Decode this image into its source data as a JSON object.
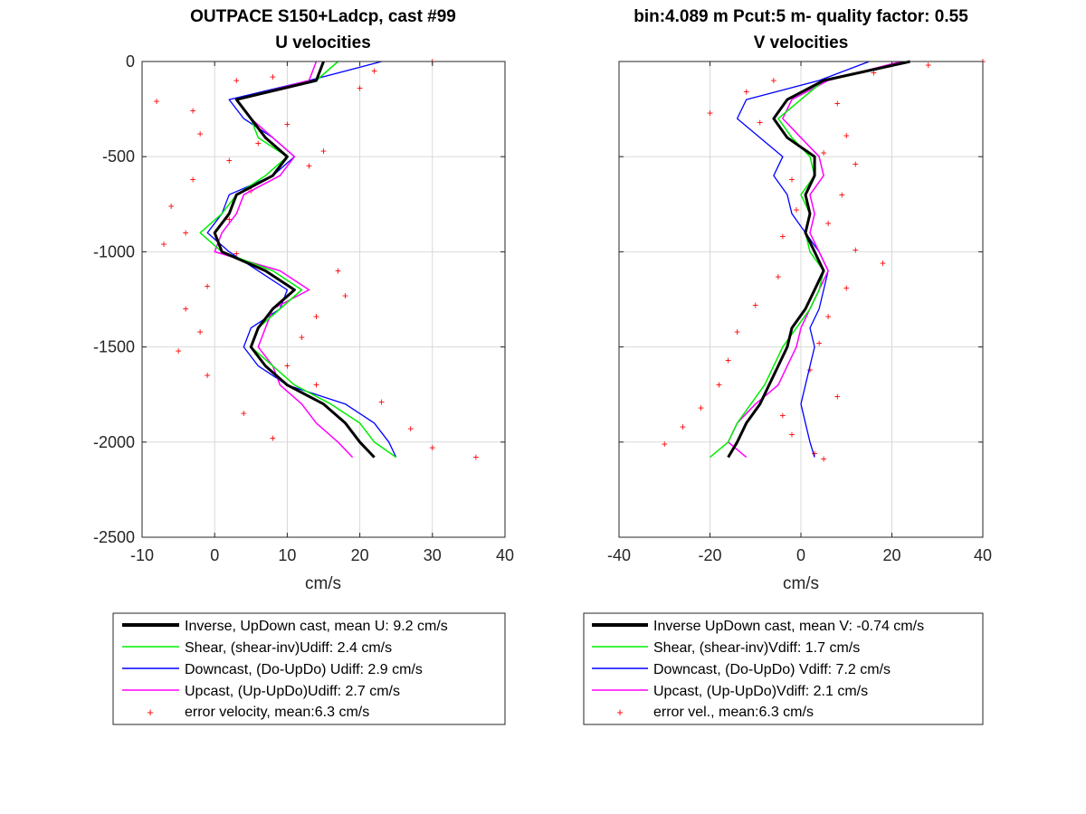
{
  "colors": {
    "inverse": "#000000",
    "shear": "#00ee00",
    "downcast": "#0000ff",
    "upcast": "#ff00ff",
    "error": "#ff0000",
    "grid": "#d9d9d9",
    "axis": "#262626"
  },
  "chart_data": [
    {
      "type": "line",
      "title": "OUTPACE S150+Ladcp, cast #99",
      "subtitle": "U velocities",
      "xlabel": "cm/s",
      "ylabel": "",
      "xlim": [
        -10,
        40
      ],
      "ylim": [
        -2500,
        0
      ],
      "xticks": [
        "-10",
        "0",
        "10",
        "20",
        "30",
        "40"
      ],
      "yticks": [
        "0",
        "-500",
        "-1000",
        "-1500",
        "-2000",
        "-2500"
      ],
      "grid": true,
      "legend_position": "below",
      "legend": [
        "Inverse, UpDown cast, mean U:  9.2 cm/s",
        "Shear, (shear-inv)Udiff:  2.4 cm/s",
        "Downcast, (Do-UpDo) Udiff:  2.9 cm/s",
        "Upcast, (Up-UpDo)Udiff:  2.7 cm/s",
        "error velocity, mean:6.3 cm/s"
      ],
      "depth": [
        0,
        -100,
        -200,
        -300,
        -400,
        -500,
        -600,
        -700,
        -800,
        -900,
        -1000,
        -1100,
        -1200,
        -1300,
        -1400,
        -1500,
        -1600,
        -1700,
        -1800,
        -1900,
        -2000,
        -2080
      ],
      "series": [
        {
          "name": "Inverse",
          "values": [
            15,
            14,
            3,
            5,
            7,
            10,
            8,
            3,
            2,
            0,
            1,
            7,
            11,
            8,
            6,
            5,
            7,
            10,
            15,
            18,
            20,
            22
          ]
        },
        {
          "name": "Shear",
          "values": [
            17,
            14,
            3,
            5,
            6,
            10,
            7,
            3,
            1,
            -2,
            1,
            8,
            12,
            9,
            6,
            5,
            8,
            11,
            16,
            20,
            22,
            25
          ]
        },
        {
          "name": "Downcast",
          "values": [
            23,
            13,
            2,
            4,
            8,
            11,
            8,
            2,
            1,
            -1,
            2,
            6,
            10,
            9,
            5,
            4,
            6,
            10,
            18,
            22,
            24,
            25
          ]
        },
        {
          "name": "Upcast",
          "values": [
            14,
            13,
            3,
            5,
            8,
            11,
            9,
            4,
            3,
            1,
            0,
            9,
            13,
            8,
            7,
            6,
            8,
            9,
            12,
            14,
            17,
            19
          ]
        }
      ],
      "error_scatter": {
        "name": "error velocity",
        "points": [
          [
            30,
            0
          ],
          [
            22,
            -50
          ],
          [
            8,
            -80
          ],
          [
            3,
            -100
          ],
          [
            20,
            -140
          ],
          [
            -8,
            -210
          ],
          [
            -3,
            -260
          ],
          [
            10,
            -330
          ],
          [
            -2,
            -380
          ],
          [
            6,
            -430
          ],
          [
            15,
            -470
          ],
          [
            2,
            -520
          ],
          [
            13,
            -550
          ],
          [
            -3,
            -620
          ],
          [
            5,
            -680
          ],
          [
            -6,
            -760
          ],
          [
            2,
            -830
          ],
          [
            -4,
            -900
          ],
          [
            -7,
            -960
          ],
          [
            3,
            -1010
          ],
          [
            17,
            -1100
          ],
          [
            -1,
            -1180
          ],
          [
            18,
            -1230
          ],
          [
            -4,
            -1300
          ],
          [
            14,
            -1340
          ],
          [
            -2,
            -1420
          ],
          [
            12,
            -1450
          ],
          [
            -5,
            -1520
          ],
          [
            10,
            -1600
          ],
          [
            -1,
            -1650
          ],
          [
            14,
            -1700
          ],
          [
            23,
            -1790
          ],
          [
            4,
            -1850
          ],
          [
            27,
            -1930
          ],
          [
            8,
            -1980
          ],
          [
            30,
            -2030
          ],
          [
            36,
            -2080
          ]
        ]
      }
    },
    {
      "type": "line",
      "title": "bin:4.089 m  Pcut:5 m- quality factor:  0.55",
      "subtitle": "V velocities",
      "xlabel": "cm/s",
      "ylabel": "",
      "xlim": [
        -40,
        40
      ],
      "ylim": [
        -2500,
        0
      ],
      "xticks": [
        "-40",
        "-20",
        "0",
        "20",
        "40"
      ],
      "yticks": [],
      "grid": true,
      "legend_position": "below",
      "legend": [
        "Inverse UpDown cast, mean V:  -0.74 cm/s",
        "Shear, (shear-inv)Vdiff:  1.7 cm/s",
        "Downcast, (Do-UpDo) Vdiff:  7.2 cm/s",
        "Upcast, (Up-UpDo)Vdiff:  2.1 cm/s",
        "error vel., mean:6.3 cm/s"
      ],
      "depth": [
        0,
        -100,
        -200,
        -300,
        -400,
        -500,
        -600,
        -700,
        -800,
        -900,
        -1000,
        -1100,
        -1200,
        -1300,
        -1400,
        -1500,
        -1600,
        -1700,
        -1800,
        -1900,
        -2000,
        -2080
      ],
      "series": [
        {
          "name": "Inverse",
          "values": [
            24,
            5,
            -3,
            -6,
            -3,
            3,
            3,
            1,
            2,
            1,
            3,
            5,
            3,
            1,
            -2,
            -3,
            -5,
            -7,
            -9,
            -12,
            -14,
            -16
          ]
        },
        {
          "name": "Shear",
          "values": [
            24,
            5,
            0,
            -5,
            -2,
            2,
            3,
            0,
            2,
            1,
            2,
            5,
            4,
            2,
            -1,
            -4,
            -6,
            -8,
            -11,
            -14,
            -16,
            -20
          ]
        },
        {
          "name": "Downcast",
          "values": [
            15,
            4,
            -12,
            -14,
            -9,
            -4,
            -6,
            -3,
            -2,
            1,
            4,
            6,
            5,
            4,
            2,
            3,
            2,
            1,
            0,
            1,
            2,
            3
          ]
        },
        {
          "name": "Upcast",
          "values": [
            22,
            6,
            -2,
            -4,
            0,
            4,
            5,
            2,
            3,
            2,
            4,
            6,
            4,
            2,
            0,
            -1,
            -3,
            -5,
            -10,
            -14,
            -16,
            -12
          ]
        }
      ],
      "error_scatter": {
        "name": "error vel.",
        "points": [
          [
            40,
            0
          ],
          [
            28,
            -20
          ],
          [
            16,
            -60
          ],
          [
            -6,
            -100
          ],
          [
            -12,
            -160
          ],
          [
            8,
            -220
          ],
          [
            -20,
            -270
          ],
          [
            -9,
            -320
          ],
          [
            10,
            -390
          ],
          [
            5,
            -480
          ],
          [
            12,
            -540
          ],
          [
            -2,
            -620
          ],
          [
            9,
            -700
          ],
          [
            -1,
            -780
          ],
          [
            6,
            -850
          ],
          [
            -4,
            -920
          ],
          [
            12,
            -990
          ],
          [
            18,
            -1060
          ],
          [
            -5,
            -1130
          ],
          [
            10,
            -1190
          ],
          [
            -10,
            -1280
          ],
          [
            6,
            -1340
          ],
          [
            -14,
            -1420
          ],
          [
            4,
            -1480
          ],
          [
            -16,
            -1570
          ],
          [
            2,
            -1620
          ],
          [
            -18,
            -1700
          ],
          [
            8,
            -1760
          ],
          [
            -22,
            -1820
          ],
          [
            -4,
            -1860
          ],
          [
            -26,
            -1920
          ],
          [
            -2,
            -1960
          ],
          [
            -30,
            -2010
          ],
          [
            3,
            -2060
          ],
          [
            5,
            -2090
          ]
        ]
      }
    }
  ]
}
